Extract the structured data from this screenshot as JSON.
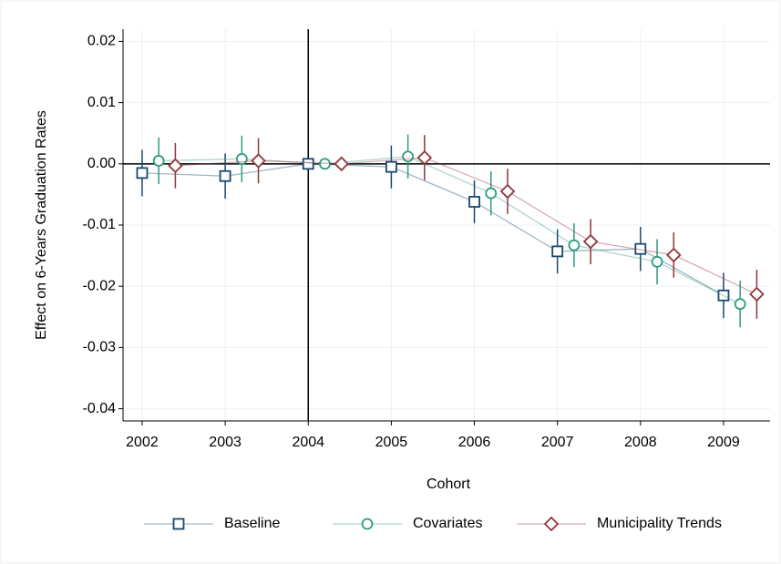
{
  "chart_data": {
    "type": "line",
    "x_label": "Cohort",
    "y_label": "Effect on 6-Years Graduation Rates",
    "xlim": [
      2001.77,
      2009.56
    ],
    "xticks": [
      2002,
      2003,
      2004,
      2005,
      2006,
      2007,
      2008,
      2009
    ],
    "ylim": [
      -0.042,
      0.022
    ],
    "yticks": [
      0.02,
      0.01,
      {
        "value": 0,
        "label": "0.00"
      },
      -0.01,
      -0.02,
      -0.03,
      -0.04
    ],
    "grid": true,
    "xline": 2004,
    "yline": 0,
    "legend": "bottom",
    "series": [
      {
        "name": "Baseline",
        "color": "#1a476f",
        "marker": "square",
        "x": [
          2002,
          2003,
          2004,
          2005,
          2006,
          2007,
          2008,
          2009
        ],
        "values": [
          -0.0015,
          -0.002,
          0,
          -0.0005,
          -0.0062,
          -0.0143,
          -0.0139,
          -0.0215
        ],
        "errors": [
          0.0038,
          0.0037,
          null,
          0.0035,
          0.0035,
          0.0036,
          0.0036,
          0.0037
        ]
      },
      {
        "name": "Covariates",
        "color": "#2e9c7f",
        "marker": "circle",
        "x": [
          2002.2,
          2003.2,
          2004.2,
          2005.2,
          2006.2,
          2007.2,
          2008.2,
          2009.2
        ],
        "values": [
          0.0005,
          0.0008,
          0,
          0.0012,
          -0.0048,
          -0.0133,
          -0.016,
          -0.0229
        ],
        "errors": [
          0.0038,
          0.0038,
          null,
          0.0036,
          0.0036,
          0.0036,
          0.0037,
          0.0038
        ]
      },
      {
        "name": "Municipality Trends",
        "color": "#90353b",
        "marker": "diamond",
        "x": [
          2002.4,
          2003.4,
          2004.4,
          2005.4,
          2006.4,
          2007.4,
          2008.4,
          2009.4
        ],
        "values": [
          -0.0003,
          0.0005,
          0,
          0.001,
          -0.0045,
          -0.0127,
          -0.0149,
          -0.0213
        ],
        "errors": [
          0.0037,
          0.0037,
          null,
          0.0037,
          0.0037,
          0.0037,
          0.0037,
          0.004
        ]
      }
    ]
  }
}
